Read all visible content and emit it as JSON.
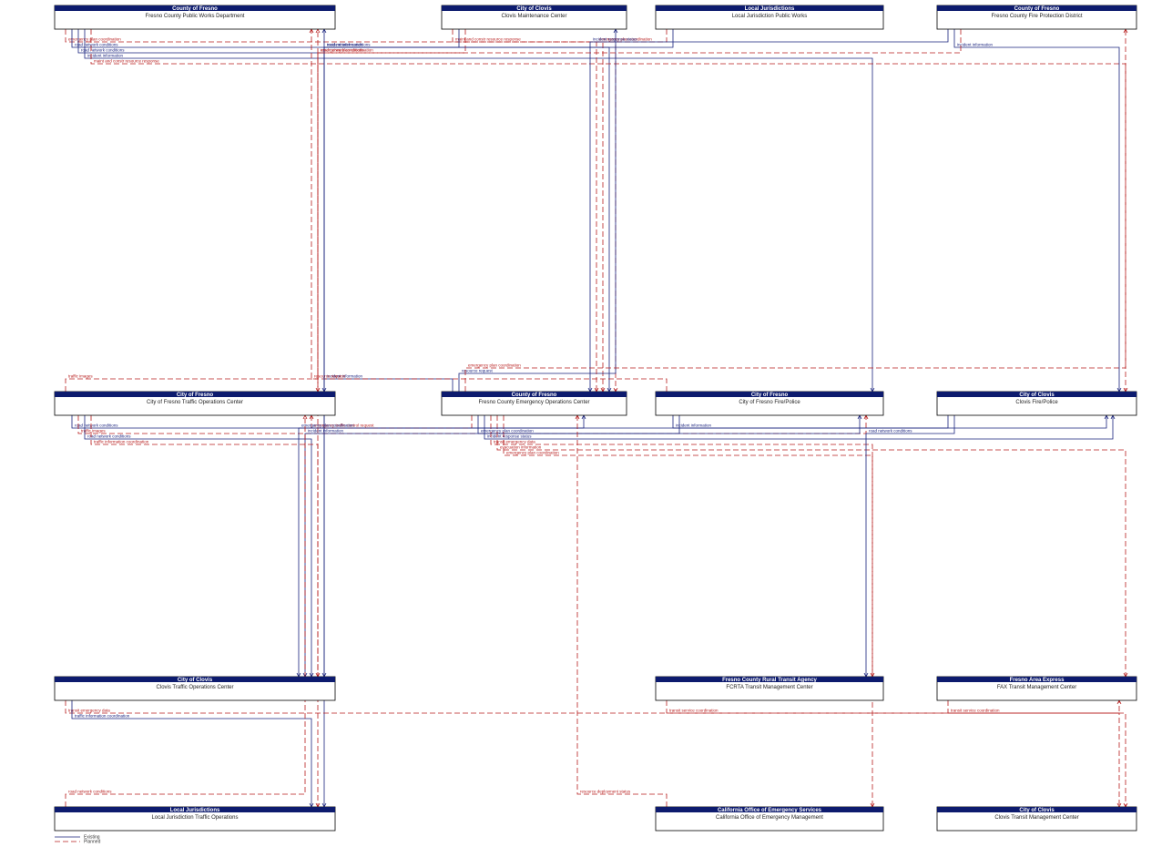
{
  "nodes": [
    {
      "owner": "County of Fresno",
      "name": "Fresno County Public Works Department"
    },
    {
      "owner": "City of Clovis",
      "name": "Clovis Maintenance Center"
    },
    {
      "owner": "Local Jurisdictions",
      "name": "Local Jurisdiction Public Works"
    },
    {
      "owner": "County of Fresno",
      "name": "Fresno County Fire Protection District"
    },
    {
      "owner": "City of Fresno",
      "name": "City of Fresno Traffic Operations Center"
    },
    {
      "owner": "County of Fresno",
      "name": "Fresno County Emergency Operations Center"
    },
    {
      "owner": "City of Fresno",
      "name": "City of Fresno Fire/Police"
    },
    {
      "owner": "City of Clovis",
      "name": "Clovis Fire/Police"
    },
    {
      "owner": "City of Clovis",
      "name": "Clovis Traffic Operations Center"
    },
    {
      "owner": "Fresno County Rural Transit Agency",
      "name": "FCRTA Transit Management Center"
    },
    {
      "owner": "Fresno Area Express",
      "name": "FAX Transit Management Center"
    },
    {
      "owner": "Local Jurisdictions",
      "name": "Local Jurisdiction Traffic Operations"
    },
    {
      "owner": "California Office of Emergency Services",
      "name": "California Office of Emergency Management"
    },
    {
      "owner": "City of Clovis",
      "name": "Clovis Transit Management Center"
    }
  ],
  "flows": [
    {
      "from": 0,
      "to": 5,
      "label": "emergency plan coordination",
      "status": "Planned"
    },
    {
      "from": 5,
      "to": 0,
      "label": "incident information",
      "status": "Existing"
    },
    {
      "from": 0,
      "to": 5,
      "label": "road network conditions",
      "status": "Existing"
    },
    {
      "from": 0,
      "to": 4,
      "label": "road network conditions",
      "status": "Existing"
    },
    {
      "from": 4,
      "to": 0,
      "label": "traffic images",
      "status": "Planned"
    },
    {
      "from": 0,
      "to": 6,
      "label": "incident information",
      "status": "Existing"
    },
    {
      "from": 6,
      "to": 0,
      "label": "resource request",
      "status": "Planned"
    },
    {
      "from": 0,
      "to": 7,
      "label": "maint and constr resource response",
      "status": "Planned"
    },
    {
      "from": 1,
      "to": 5,
      "label": "maint and constr resource response",
      "status": "Planned"
    },
    {
      "from": 5,
      "to": 1,
      "label": "resource request",
      "status": "Existing"
    },
    {
      "from": 1,
      "to": 8,
      "label": "incident information",
      "status": "Existing"
    },
    {
      "from": 1,
      "to": 4,
      "label": "road network conditions",
      "status": "Planned"
    },
    {
      "from": 2,
      "to": 5,
      "label": "emergency plan coordination",
      "status": "Planned"
    },
    {
      "from": 2,
      "to": 11,
      "label": "road network conditions",
      "status": "Existing"
    },
    {
      "from": 3,
      "to": 5,
      "label": "incident response status",
      "status": "Existing"
    },
    {
      "from": 5,
      "to": 3,
      "label": "emergency plan coordination",
      "status": "Planned"
    },
    {
      "from": 3,
      "to": 7,
      "label": "incident information",
      "status": "Existing"
    },
    {
      "from": 3,
      "to": 8,
      "label": "emergency plan coordination",
      "status": "Planned"
    },
    {
      "from": 4,
      "to": 5,
      "label": "road network conditions",
      "status": "Existing"
    },
    {
      "from": 5,
      "to": 4,
      "label": "emergency traffic control request",
      "status": "Planned"
    },
    {
      "from": 4,
      "to": 6,
      "label": "traffic images",
      "status": "Planned"
    },
    {
      "from": 4,
      "to": 8,
      "label": "road network conditions",
      "status": "Existing"
    },
    {
      "from": 4,
      "to": 11,
      "label": "traffic information coordination",
      "status": "Planned"
    },
    {
      "from": 5,
      "to": 6,
      "label": "emergency plan coordination",
      "status": "Existing"
    },
    {
      "from": 5,
      "to": 7,
      "label": "incident response status",
      "status": "Existing"
    },
    {
      "from": 5,
      "to": 9,
      "label": "transit emergency data",
      "status": "Planned"
    },
    {
      "from": 5,
      "to": 10,
      "label": "evacuation information",
      "status": "Planned"
    },
    {
      "from": 5,
      "to": 12,
      "label": "emergency plan coordination",
      "status": "Planned"
    },
    {
      "from": 6,
      "to": 7,
      "label": "incident information",
      "status": "Existing"
    },
    {
      "from": 6,
      "to": 8,
      "label": "incident information",
      "status": "Existing"
    },
    {
      "from": 7,
      "to": 8,
      "label": "emergency plan coordination",
      "status": "Existing"
    },
    {
      "from": 8,
      "to": 13,
      "label": "transit emergency data",
      "status": "Planned"
    },
    {
      "from": 9,
      "to": 10,
      "label": "transit service coordination",
      "status": "Planned"
    },
    {
      "from": 7,
      "to": 9,
      "label": "road network conditions",
      "status": "Existing"
    },
    {
      "from": 8,
      "to": 11,
      "label": "traffic information coordination",
      "status": "Existing"
    },
    {
      "from": 10,
      "to": 13,
      "label": "transit service coordination",
      "status": "Planned"
    },
    {
      "from": 12,
      "to": 5,
      "label": "resource deployment status",
      "status": "Planned"
    },
    {
      "from": 11,
      "to": 4,
      "label": "road network conditions",
      "status": "Planned"
    }
  ],
  "legend": [
    {
      "label": "Existing"
    },
    {
      "label": "Planned"
    }
  ]
}
